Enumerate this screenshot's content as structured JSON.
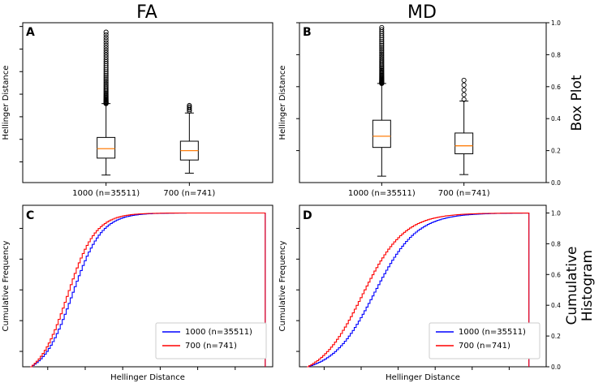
{
  "figure": {
    "column_titles": [
      "FA",
      "MD"
    ],
    "row_titles": [
      "Box Plot",
      "Cumulative\nHistogram"
    ],
    "right_axis_ticks": [
      "0.0",
      "0.2",
      "0.4",
      "0.6",
      "0.8",
      "1.0"
    ]
  },
  "chart_data": [
    {
      "type": "box",
      "panel": "A",
      "title": "",
      "ylabel": "Hellinger Distance",
      "xlabel": "",
      "categories": [
        "1000 (n=35511)",
        "700 (n=741)"
      ],
      "ylim": [
        0,
        0.85
      ],
      "y_tick_values": [
        0.11,
        0.23,
        0.35,
        0.47,
        0.59,
        0.71,
        0.83
      ],
      "y_tick_labels_visible": false,
      "boxes": [
        {
          "name": "1000 (n=35511)",
          "whisker_low": 0.04,
          "q1": 0.13,
          "median": 0.18,
          "q3": 0.24,
          "whisker_high": 0.42,
          "outlier_low": 0.42,
          "outlier_high": 0.8,
          "dense_outliers": true
        },
        {
          "name": "700 (n=741)",
          "whisker_low": 0.05,
          "q1": 0.12,
          "median": 0.17,
          "q3": 0.22,
          "whisker_high": 0.37,
          "outlier_low": 0.38,
          "outlier_high": 0.41,
          "dense_outliers": false
        }
      ],
      "colors": {
        "box": "#000000",
        "median": "#ff7f0e"
      }
    },
    {
      "type": "box",
      "panel": "B",
      "title": "",
      "ylabel": "Hellinger Distance",
      "xlabel": "",
      "categories": [
        "1000 (n=35511)",
        "700 (n=741)"
      ],
      "ylim": [
        0,
        1.0
      ],
      "y_tick_values": [
        0.2,
        0.4,
        0.6,
        0.8,
        1.0
      ],
      "y_tick_labels_visible": false,
      "boxes": [
        {
          "name": "1000 (n=35511)",
          "whisker_low": 0.04,
          "q1": 0.22,
          "median": 0.29,
          "q3": 0.39,
          "whisker_high": 0.62,
          "outlier_low": 0.62,
          "outlier_high": 0.97,
          "dense_outliers": true
        },
        {
          "name": "700 (n=741)",
          "whisker_low": 0.05,
          "q1": 0.18,
          "median": 0.23,
          "q3": 0.31,
          "whisker_high": 0.51,
          "outlier_low": 0.52,
          "outlier_high": 0.64,
          "dense_outliers": false
        }
      ],
      "colors": {
        "box": "#000000",
        "median": "#ff7f0e"
      }
    },
    {
      "type": "line",
      "panel": "C",
      "title": "",
      "xlabel": "Hellinger Distance",
      "ylabel": "Cumulative Frequency",
      "xlim": [
        0,
        1.0
      ],
      "ylim": [
        0,
        1.05
      ],
      "legend_position": "lower-right",
      "series": [
        {
          "name": "1000 (n=35511)",
          "color": "#0000ff",
          "cdf_x50": 0.195,
          "cdf_spread": 0.058,
          "cdf_start": 0.03,
          "cdf_end": 0.97
        },
        {
          "name": "700 (n=741)",
          "color": "#ff0000",
          "cdf_x50": 0.175,
          "cdf_spread": 0.056,
          "cdf_start": 0.03,
          "cdf_end": 0.97
        }
      ]
    },
    {
      "type": "line",
      "panel": "D",
      "title": "",
      "xlabel": "Hellinger Distance",
      "ylabel": "Cumulative Frequency",
      "xlim": [
        0,
        1.0
      ],
      "ylim": [
        0,
        1.05
      ],
      "legend_position": "lower-right",
      "series": [
        {
          "name": "1000 (n=35511)",
          "color": "#0000ff",
          "cdf_x50": 0.3,
          "cdf_spread": 0.085,
          "cdf_start": 0.03,
          "cdf_end": 0.93
        },
        {
          "name": "700 (n=741)",
          "color": "#ff0000",
          "cdf_x50": 0.25,
          "cdf_spread": 0.085,
          "cdf_start": 0.03,
          "cdf_end": 0.93
        }
      ]
    }
  ]
}
